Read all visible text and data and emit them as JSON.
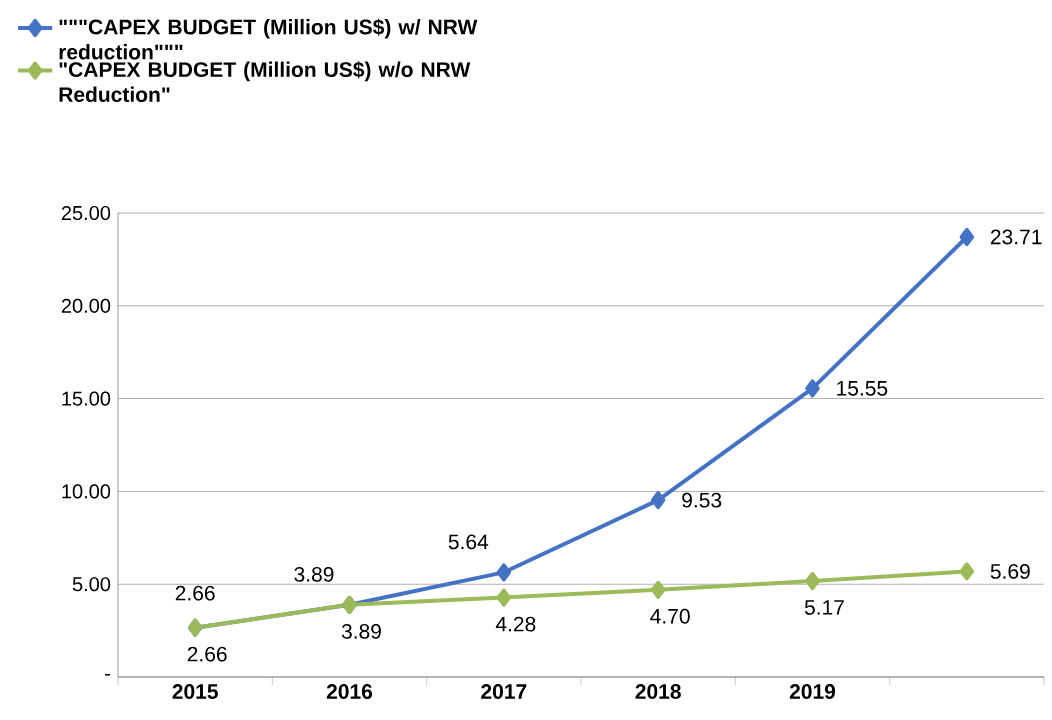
{
  "chart_data": {
    "type": "line",
    "categories": [
      "2015",
      "2016",
      "2017",
      "2018",
      "2019",
      null
    ],
    "series": [
      {
        "name": "\"\"\"CAPEX BUDGET (Million US$) w/ NRW reduction\"\"\"",
        "color": "#4472c4",
        "values": [
          2.66,
          3.89,
          5.64,
          9.53,
          15.55,
          23.71
        ],
        "value_labels": [
          "2.66",
          "3.89",
          "5.64",
          "9.53",
          "15.55",
          "23.71"
        ]
      },
      {
        "name": "\"CAPEX BUDGET (Million US$) w/o NRW Reduction\"",
        "color": "#9bbb59",
        "values": [
          2.66,
          3.89,
          4.28,
          4.7,
          5.17,
          5.69
        ],
        "value_labels": [
          "2.66",
          "3.89",
          "4.28",
          "4.70",
          "5.17",
          "5.69"
        ]
      }
    ],
    "ylim": [
      0,
      25
    ],
    "yticks": [
      {
        "value": 0,
        "label": "-"
      },
      {
        "value": 5,
        "label": "5.00"
      },
      {
        "value": 10,
        "label": "10.00"
      },
      {
        "value": 15,
        "label": "15.00"
      },
      {
        "value": 20,
        "label": "20.00"
      },
      {
        "value": 25,
        "label": "25.00"
      }
    ],
    "grid": "y",
    "legend": "top left",
    "marker": "diamond",
    "line_style": "solid"
  }
}
